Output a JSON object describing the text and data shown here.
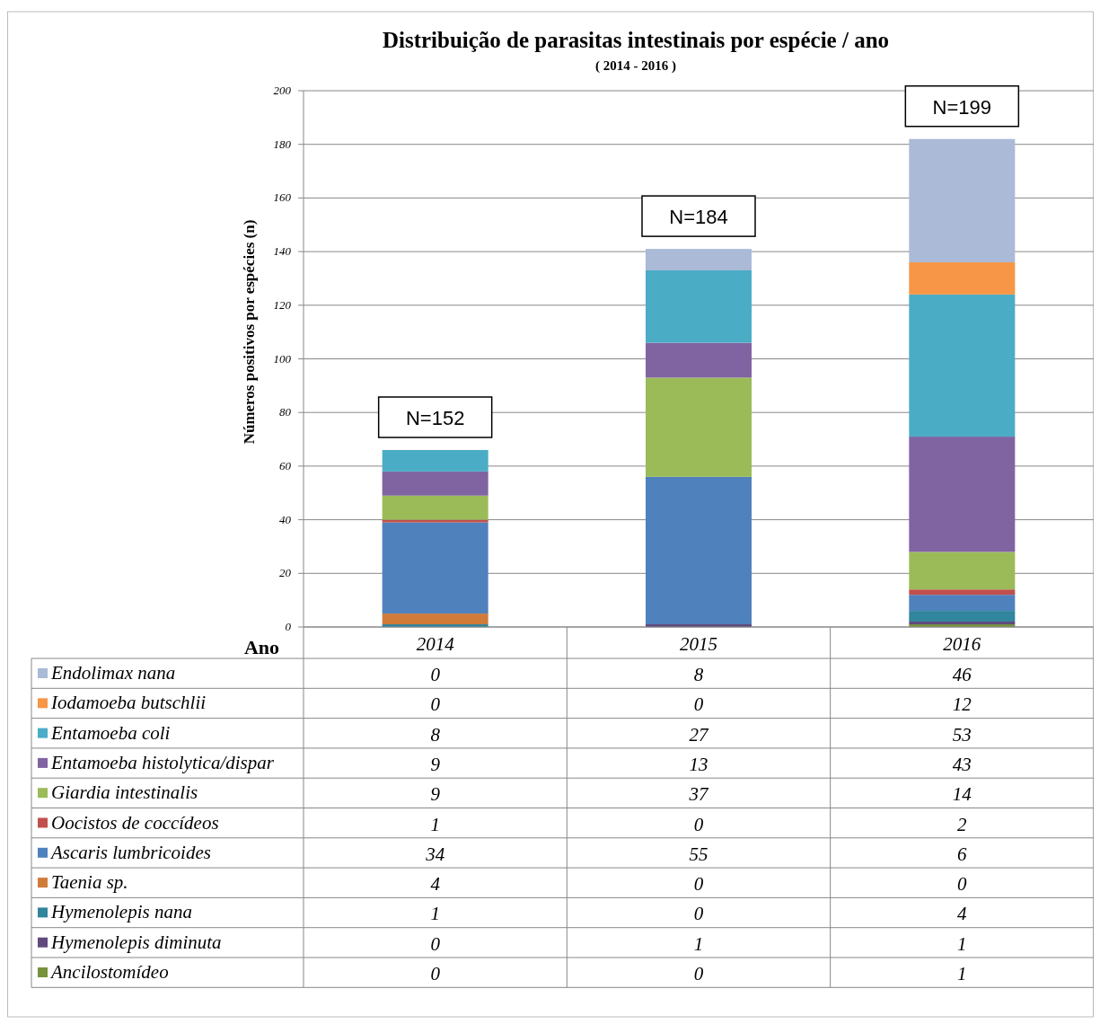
{
  "chart_data": {
    "type": "bar",
    "title": "Distribuição de parasitas intestinais por espécie / ano",
    "subtitle": "( 2014 - 2016 )",
    "xlabel": "Ano",
    "ylabel": "Números positivos por espécies (n)",
    "categories": [
      "2014",
      "2015",
      "2016"
    ],
    "stacked": true,
    "ylim": [
      0,
      200
    ],
    "yticks": [
      0,
      20,
      40,
      60,
      80,
      100,
      120,
      140,
      160,
      180,
      200
    ],
    "grid": "y",
    "legend": "bottom",
    "data_labels": true,
    "series": [
      {
        "name": "Ancilostomídeo",
        "color": "#76923c",
        "values": [
          0,
          0,
          1
        ]
      },
      {
        "name": "Hymenolepis diminuta",
        "color": "#604a7b",
        "values": [
          0,
          1,
          1
        ]
      },
      {
        "name": "Hymenolepis nana",
        "color": "#31859c",
        "values": [
          1,
          0,
          4
        ]
      },
      {
        "name": "Taenia sp.",
        "color": "#d07b3a",
        "values": [
          4,
          0,
          0
        ]
      },
      {
        "name": "Ascaris lumbricoides",
        "color": "#4f81bd",
        "values": [
          34,
          55,
          6
        ]
      },
      {
        "name": "Oocistos de coccídeos",
        "color": "#c0504d",
        "values": [
          1,
          0,
          2
        ]
      },
      {
        "name": "Giardia intestinalis",
        "color": "#9bbb59",
        "values": [
          9,
          37,
          14
        ]
      },
      {
        "name": "Entamoeba histolytica/dispar",
        "color": "#8064a2",
        "values": [
          9,
          13,
          43
        ]
      },
      {
        "name": "Entamoeba coli",
        "color": "#4bacc6",
        "values": [
          8,
          27,
          53
        ]
      },
      {
        "name": "Iodamoeba butschlii",
        "color": "#f79646",
        "values": [
          0,
          0,
          12
        ]
      },
      {
        "name": "Endolimax nana",
        "color": "#aabad7",
        "values": [
          0,
          8,
          46
        ]
      }
    ],
    "annotations": [
      {
        "text": "N=152",
        "x": "2014",
        "y": 66
      },
      {
        "text": "N=184",
        "x": "2015",
        "y": 141
      },
      {
        "text": "N=199",
        "x": "2016",
        "y": 182
      }
    ]
  }
}
